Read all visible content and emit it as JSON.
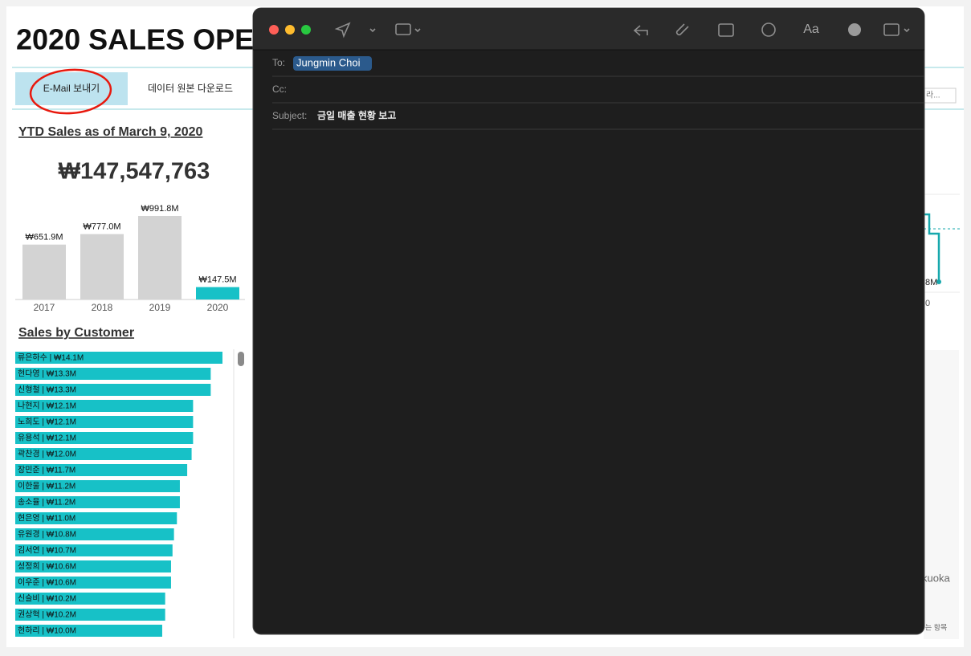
{
  "dashboard": {
    "title": "2020 SALES OPE",
    "buttons": [
      "E-Mail 보내기",
      "데이터 원본 다운로드"
    ],
    "search_hint": "라...",
    "ytd_title": "YTD Sales as of March 9, 2020",
    "ytd_value": "₩147,547,763",
    "yearly": {
      "categories": [
        "2017",
        "2018",
        "2019",
        "2020"
      ],
      "values": [
        651.9,
        777.0,
        991.8,
        147.5
      ],
      "value_labels": [
        "₩651.9M",
        "₩777.0M",
        "₩991.8M",
        "₩147.5M"
      ],
      "colors": [
        "#d3d3d3",
        "#d3d3d3",
        "#d3d3d3",
        "#17c1c7"
      ]
    },
    "customer_title": "Sales by Customer",
    "customers": {
      "labels": [
        "류은하수 | ₩14.1M",
        "현다영 | ₩13.3M",
        "신형철 | ₩13.3M",
        "나현지 | ₩12.1M",
        "노희도 | ₩12.1M",
        "유용석 | ₩12.1M",
        "곽찬경 | ₩12.0M",
        "장민준 | ₩11.7M",
        "이한울 | ₩11.2M",
        "송소율 | ₩11.2M",
        "현은영 | ₩11.0M",
        "유원경 | ₩10.8M",
        "김서연 | ₩10.7M",
        "성정희 | ₩10.6M",
        "이우준 | ₩10.6M",
        "신슬비 | ₩10.2M",
        "권상혁 | ₩10.2M",
        "현하리 | ₩10.0M"
      ],
      "values": [
        14.1,
        13.3,
        13.3,
        12.1,
        12.1,
        12.1,
        12.0,
        11.7,
        11.2,
        11.2,
        11.0,
        10.8,
        10.7,
        10.6,
        10.6,
        10.2,
        10.2,
        10.0
      ],
      "color": "#17c1c7"
    },
    "right_fragments": [
      "8M",
      "0",
      "kuoka",
      "는 항목"
    ]
  },
  "mail": {
    "font_button": "Aa",
    "to_label": "To:",
    "to": "Jungmin Choi",
    "cc_label": "Cc:",
    "subject_label": "Subject:",
    "subject": "금일 매출 현황 보고"
  }
}
